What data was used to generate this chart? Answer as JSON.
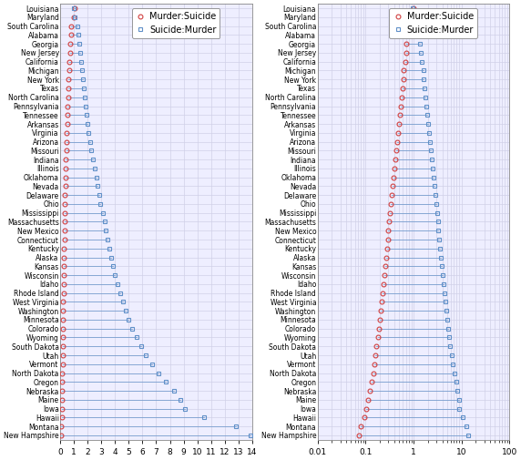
{
  "states": [
    "Louisiana",
    "Maryland",
    "South Carolina",
    "Alabama",
    "Georgia",
    "New Jersey",
    "California",
    "Michigan",
    "New York",
    "Texas",
    "North Carolina",
    "Pennsylvania",
    "Tennessee",
    "Arkansas",
    "Virginia",
    "Arizona",
    "Missouri",
    "Indiana",
    "Illinois",
    "Oklahoma",
    "Nevada",
    "Delaware",
    "Ohio",
    "Mississippi",
    "Massachusetts",
    "New Mexico",
    "Connecticut",
    "Kentucky",
    "Alaska",
    "Kansas",
    "Wisconsin",
    "Idaho",
    "Rhode Island",
    "West Virginia",
    "Washington",
    "Minnesota",
    "Colorado",
    "Wyoming",
    "South Dakota",
    "Utah",
    "Vermont",
    "North Dakota",
    "Oregon",
    "Nebraska",
    "Maine",
    "Iowa",
    "Hawaii",
    "Montana",
    "New Hampshire"
  ],
  "murder_suicide": [
    1.02,
    0.96,
    0.8,
    0.76,
    0.72,
    0.7,
    0.67,
    0.63,
    0.61,
    0.59,
    0.57,
    0.54,
    0.52,
    0.5,
    0.48,
    0.46,
    0.44,
    0.42,
    0.4,
    0.38,
    0.37,
    0.35,
    0.34,
    0.32,
    0.31,
    0.3,
    0.29,
    0.28,
    0.27,
    0.26,
    0.25,
    0.24,
    0.23,
    0.22,
    0.21,
    0.2,
    0.19,
    0.18,
    0.17,
    0.16,
    0.155,
    0.145,
    0.135,
    0.125,
    0.115,
    0.105,
    0.095,
    0.078,
    0.072
  ],
  "suicide_murder": [
    0.98,
    1.04,
    1.25,
    1.32,
    1.39,
    1.43,
    1.5,
    1.59,
    1.64,
    1.7,
    1.75,
    1.85,
    1.92,
    1.99,
    2.08,
    2.17,
    2.27,
    2.38,
    2.5,
    2.63,
    2.7,
    2.86,
    2.94,
    3.13,
    3.23,
    3.33,
    3.45,
    3.57,
    3.7,
    3.85,
    4.0,
    4.17,
    4.35,
    4.55,
    4.76,
    5.0,
    5.26,
    5.56,
    5.88,
    6.25,
    6.67,
    7.14,
    7.69,
    8.33,
    8.77,
    9.09,
    10.5,
    12.8,
    13.9
  ],
  "murder_suicide_color": "#d04040",
  "suicide_murder_color": "#6090c8",
  "line_color": "#6090c8",
  "grid_color": "#d0d0e8",
  "background_color": "#eeeeff",
  "label_fontsize": 5.5,
  "tick_fontsize": 6.5,
  "legend_fontsize": 7
}
